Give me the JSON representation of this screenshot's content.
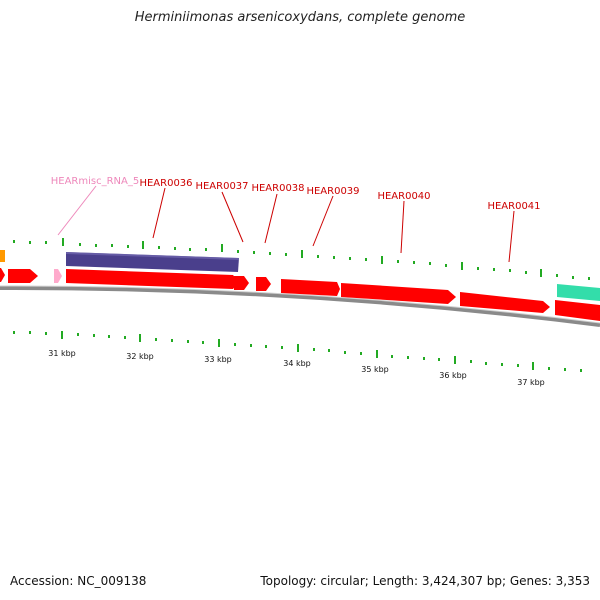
{
  "title": "Herminiimonas arsenicoxydans, complete genome",
  "footer": {
    "accession": "Accession: NC_009138",
    "summary": "Topology: circular; Length: 3,424,307 bp; Genes: 3,353"
  },
  "colors": {
    "cds_forward": "#ff0000",
    "purple_feature": "#4a3f8c",
    "misc_rna": "#ffaacc",
    "teal_feature": "#33ddaa",
    "orange_feature": "#ff9900",
    "tick": "#22aa22",
    "backbone": "#8a8a8a",
    "gene_label": "#cc0000",
    "rna_label": "#ee88bb"
  },
  "scale_labels": [
    "31 kbp",
    "32 kbp",
    "33 kbp",
    "34 kbp",
    "35 kbp",
    "36 kbp",
    "37 kbp"
  ],
  "labels": {
    "rna": "HEARmisc_RNA_5",
    "g36": "HEAR0036",
    "g37": "HEAR0037",
    "g38": "HEAR0038",
    "g39": "HEAR0039",
    "g40": "HEAR0040",
    "g41": "HEAR0041"
  }
}
